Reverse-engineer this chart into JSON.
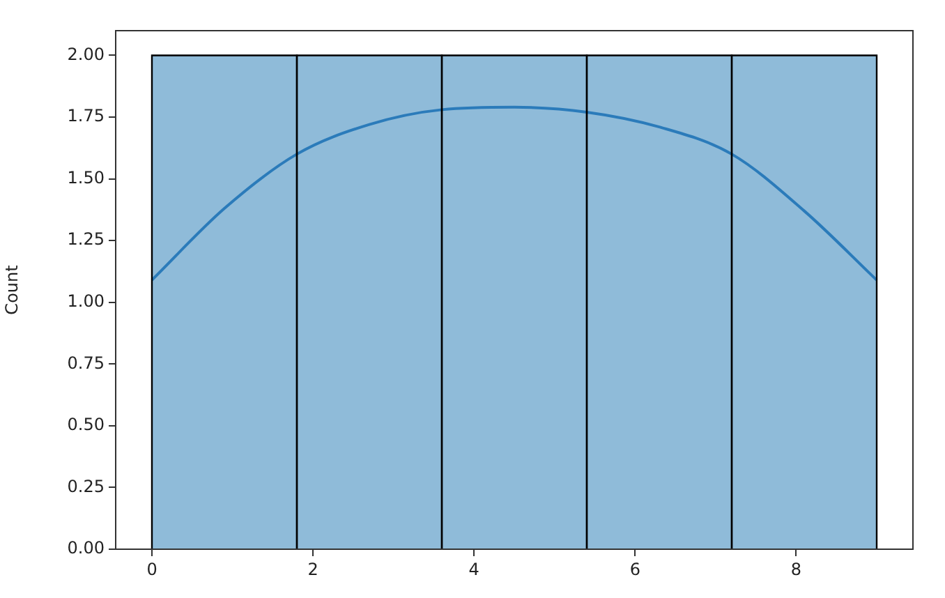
{
  "chart_data": {
    "type": "histogram",
    "ylabel": "Count",
    "bins": [
      0,
      1.8,
      3.6,
      5.4,
      7.2,
      9
    ],
    "values": [
      2,
      2,
      2,
      2,
      2
    ],
    "color": "#8fbbd9",
    "series": [
      {
        "type": "line",
        "color": "#2b7bba",
        "x": [
          0,
          0.9,
          1.8,
          2.7,
          3.6,
          4.5,
          5.4,
          6.3,
          7.2,
          8.1,
          9
        ],
        "values": [
          1.09,
          1.38,
          1.6,
          1.72,
          1.78,
          1.79,
          1.77,
          1.71,
          1.6,
          1.37,
          1.09
        ]
      }
    ],
    "xlim": [
      -0.45,
      9.45
    ],
    "xticks": [
      0,
      2,
      4,
      6,
      8
    ],
    "ylim": [
      0,
      2.1
    ],
    "yticks": [
      {
        "value": 0,
        "label": "0.00"
      },
      {
        "value": 0.25,
        "label": "0.25"
      },
      {
        "value": 0.5,
        "label": "0.50"
      },
      {
        "value": 0.75,
        "label": "0.75"
      },
      {
        "value": 1,
        "label": "1.00"
      },
      {
        "value": 1.25,
        "label": "1.25"
      },
      {
        "value": 1.5,
        "label": "1.50"
      },
      {
        "value": 1.75,
        "label": "1.75"
      },
      {
        "value": 2,
        "label": "2.00"
      }
    ],
    "grid": false,
    "legend": false,
    "marker": "none"
  }
}
